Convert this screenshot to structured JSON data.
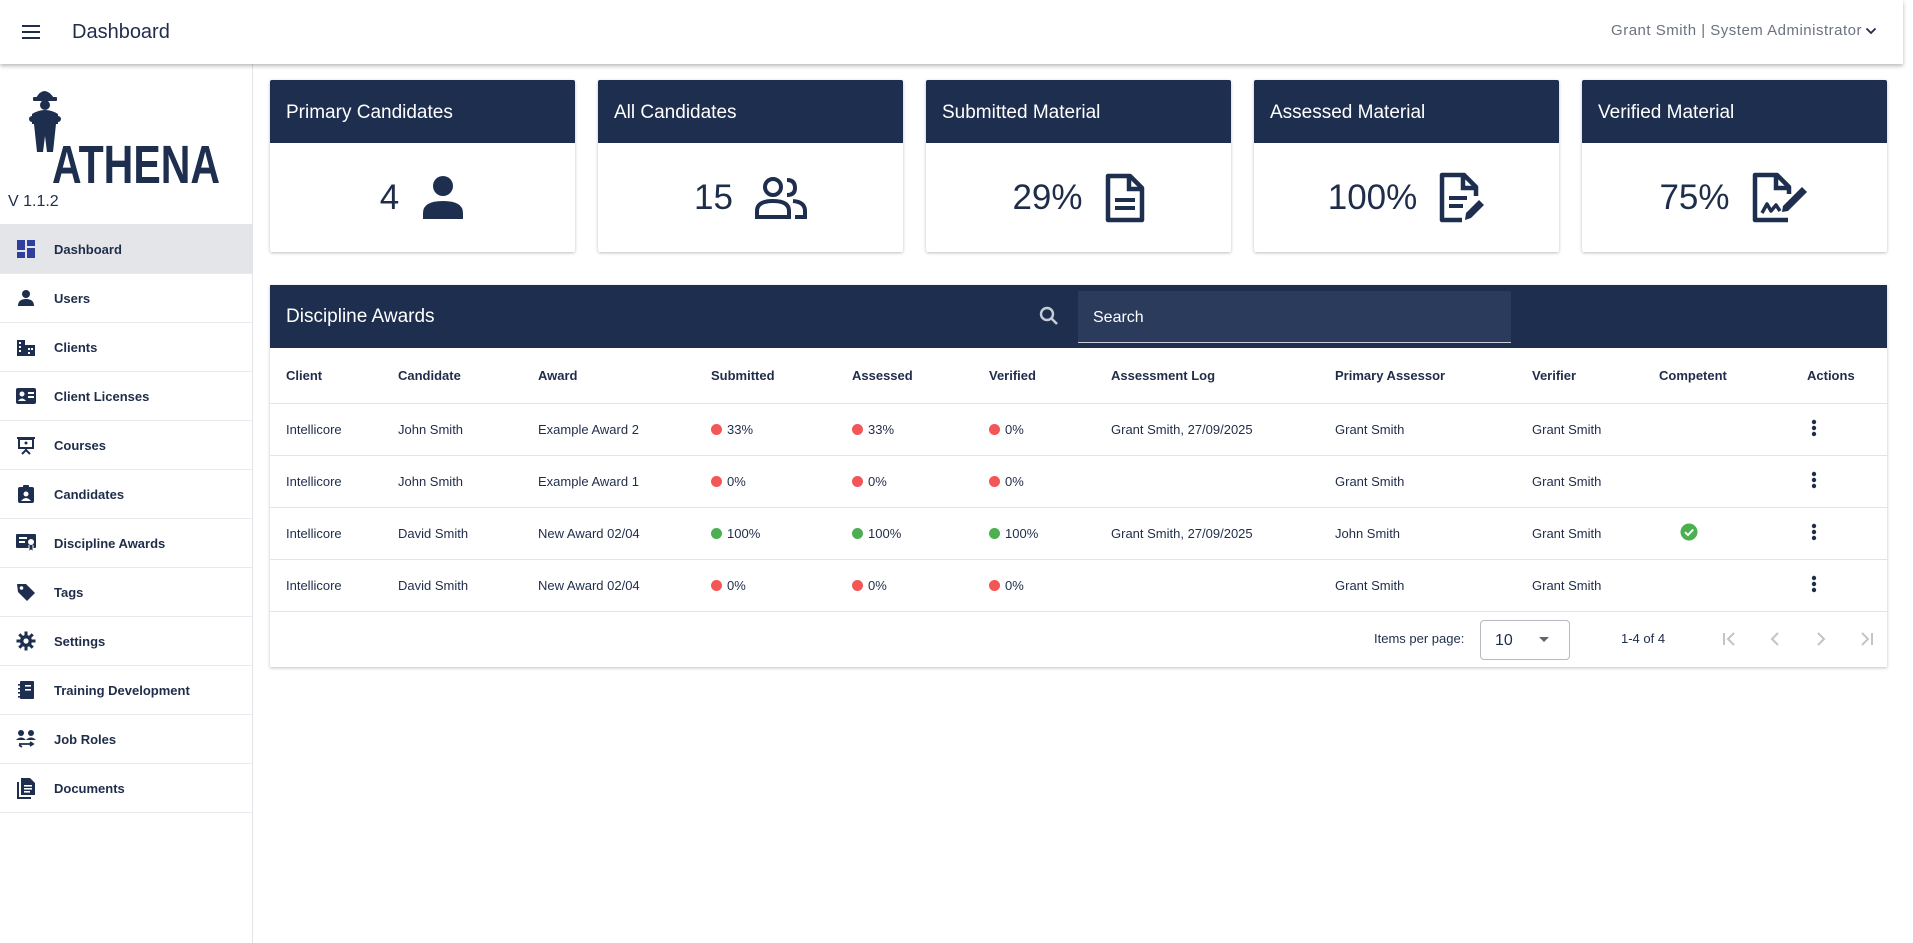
{
  "toolbar": {
    "title": "Dashboard",
    "user": "Grant Smith | System Administrator"
  },
  "sidebar": {
    "logo_text": "ATHENA",
    "version": "V 1.1.2",
    "items": [
      {
        "label": "Dashboard",
        "icon": "dashboard-icon"
      },
      {
        "label": "Users",
        "icon": "person-icon"
      },
      {
        "label": "Clients",
        "icon": "buildings-icon"
      },
      {
        "label": "Client Licenses",
        "icon": "id-card-icon"
      },
      {
        "label": "Courses",
        "icon": "presentation-icon"
      },
      {
        "label": "Candidates",
        "icon": "badge-icon"
      },
      {
        "label": "Discipline Awards",
        "icon": "certificate-icon"
      },
      {
        "label": "Tags",
        "icon": "tag-icon"
      },
      {
        "label": "Settings",
        "icon": "gear-icon"
      },
      {
        "label": "Training Development",
        "icon": "notebook-icon"
      },
      {
        "label": "Job Roles",
        "icon": "people-swap-icon"
      },
      {
        "label": "Documents",
        "icon": "documents-icon"
      }
    ]
  },
  "cards": [
    {
      "title": "Primary Candidates",
      "value": "4",
      "icon": "person-icon"
    },
    {
      "title": "All Candidates",
      "value": "15",
      "icon": "group-icon"
    },
    {
      "title": "Submitted Material",
      "value": "29%",
      "icon": "document-icon"
    },
    {
      "title": "Assessed Material",
      "value": "100%",
      "icon": "edit-document-icon"
    },
    {
      "title": "Verified Material",
      "value": "75%",
      "icon": "signature-icon"
    }
  ],
  "table": {
    "title": "Discipline Awards",
    "search_placeholder": "Search",
    "columns": [
      "Client",
      "Candidate",
      "Award",
      "Submitted",
      "Assessed",
      "Verified",
      "Assessment Log",
      "Primary Assessor",
      "Verifier",
      "Competent",
      "Actions"
    ],
    "rows": [
      {
        "client": "Intellicore",
        "candidate": "John Smith",
        "award": "Example Award 2",
        "submitted": "33%",
        "assessed": "33%",
        "verified": "0%",
        "log": "Grant Smith, 27/09/2025",
        "assessor": "Grant Smith",
        "verifier": "Grant Smith",
        "competent": false,
        "submitted_status": "red",
        "assessed_status": "red",
        "verified_status": "red"
      },
      {
        "client": "Intellicore",
        "candidate": "John Smith",
        "award": "Example Award 1",
        "submitted": "0%",
        "assessed": "0%",
        "verified": "0%",
        "log": "",
        "assessor": "Grant Smith",
        "verifier": "Grant Smith",
        "competent": false,
        "submitted_status": "red",
        "assessed_status": "red",
        "verified_status": "red"
      },
      {
        "client": "Intellicore",
        "candidate": "David Smith",
        "award": "New Award 02/04",
        "submitted": "100%",
        "assessed": "100%",
        "verified": "100%",
        "log": "Grant Smith, 27/09/2025",
        "assessor": "John Smith",
        "verifier": "Grant Smith",
        "competent": true,
        "submitted_status": "green",
        "assessed_status": "green",
        "verified_status": "green"
      },
      {
        "client": "Intellicore",
        "candidate": "David Smith",
        "award": "New Award 02/04",
        "submitted": "0%",
        "assessed": "0%",
        "verified": "0%",
        "log": "",
        "assessor": "Grant Smith",
        "verifier": "Grant Smith",
        "competent": false,
        "submitted_status": "red",
        "assessed_status": "red",
        "verified_status": "red"
      }
    ]
  },
  "paginator": {
    "items_per_page_label": "Items per page:",
    "items_per_page": "10",
    "range": "1-4 of 4"
  },
  "colors": {
    "navy": "#1d2e4e",
    "status_red": "#f25656",
    "status_green": "#4caf50"
  }
}
